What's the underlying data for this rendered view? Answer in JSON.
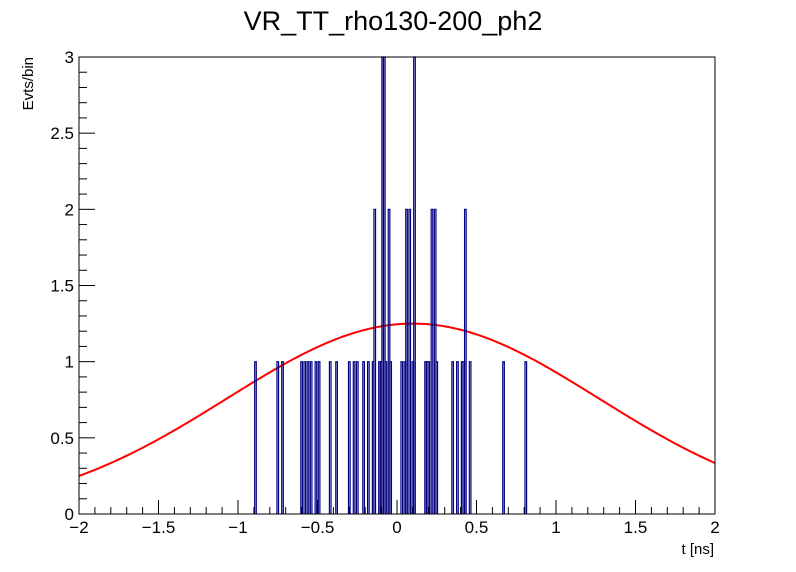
{
  "chart_data": {
    "type": "histogram",
    "title": "VR_TT_rho130-200_ph2",
    "xlabel": "t [ns]",
    "ylabel": "Evts/bin",
    "xlim": [
      -2,
      2
    ],
    "ylim": [
      0,
      3
    ],
    "x_ticks": [
      -2,
      -1.5,
      -1,
      -0.5,
      0,
      0.5,
      1,
      1.5,
      2
    ],
    "x_tick_labels": [
      "−2",
      "−1.5",
      "−1",
      "−0.5",
      "0",
      "0.5",
      "1",
      "1.5",
      "2"
    ],
    "y_ticks": [
      0,
      0.5,
      1,
      1.5,
      2,
      2.5,
      3
    ],
    "y_tick_labels": [
      "0",
      "0.5",
      "1",
      "1.5",
      "2",
      "2.5",
      "3"
    ],
    "grid": false,
    "bin_width": 0.01,
    "histogram": {
      "color": "#000080",
      "bins": [
        {
          "x": -0.89,
          "y": 1
        },
        {
          "x": -0.75,
          "y": 1
        },
        {
          "x": -0.72,
          "y": 1
        },
        {
          "x": -0.6,
          "y": 1
        },
        {
          "x": -0.58,
          "y": 1
        },
        {
          "x": -0.56,
          "y": 1
        },
        {
          "x": -0.54,
          "y": 1
        },
        {
          "x": -0.51,
          "y": 1
        },
        {
          "x": -0.49,
          "y": 1
        },
        {
          "x": -0.42,
          "y": 1
        },
        {
          "x": -0.38,
          "y": 1
        },
        {
          "x": -0.3,
          "y": 1
        },
        {
          "x": -0.27,
          "y": 1
        },
        {
          "x": -0.25,
          "y": 1
        },
        {
          "x": -0.21,
          "y": 1
        },
        {
          "x": -0.18,
          "y": 1
        },
        {
          "x": -0.15,
          "y": 1
        },
        {
          "x": -0.14,
          "y": 2
        },
        {
          "x": -0.11,
          "y": 1
        },
        {
          "x": -0.1,
          "y": 1
        },
        {
          "x": -0.09,
          "y": 3
        },
        {
          "x": -0.08,
          "y": 3
        },
        {
          "x": -0.07,
          "y": 1
        },
        {
          "x": -0.05,
          "y": 2
        },
        {
          "x": -0.04,
          "y": 1
        },
        {
          "x": 0.03,
          "y": 1
        },
        {
          "x": 0.05,
          "y": 1
        },
        {
          "x": 0.06,
          "y": 2
        },
        {
          "x": 0.08,
          "y": 2
        },
        {
          "x": 0.1,
          "y": 1
        },
        {
          "x": 0.11,
          "y": 3
        },
        {
          "x": 0.18,
          "y": 1
        },
        {
          "x": 0.19,
          "y": 1
        },
        {
          "x": 0.2,
          "y": 1
        },
        {
          "x": 0.22,
          "y": 2
        },
        {
          "x": 0.24,
          "y": 2
        },
        {
          "x": 0.25,
          "y": 1
        },
        {
          "x": 0.35,
          "y": 1
        },
        {
          "x": 0.38,
          "y": 1
        },
        {
          "x": 0.41,
          "y": 1
        },
        {
          "x": 0.42,
          "y": 1
        },
        {
          "x": 0.43,
          "y": 2
        },
        {
          "x": 0.46,
          "y": 1
        },
        {
          "x": 0.67,
          "y": 1
        },
        {
          "x": 0.81,
          "y": 1
        }
      ]
    },
    "fit": {
      "type": "gaussian",
      "color": "#ff0000",
      "amplitude": 1.25,
      "mean": 0.1,
      "sigma": 1.17
    }
  }
}
